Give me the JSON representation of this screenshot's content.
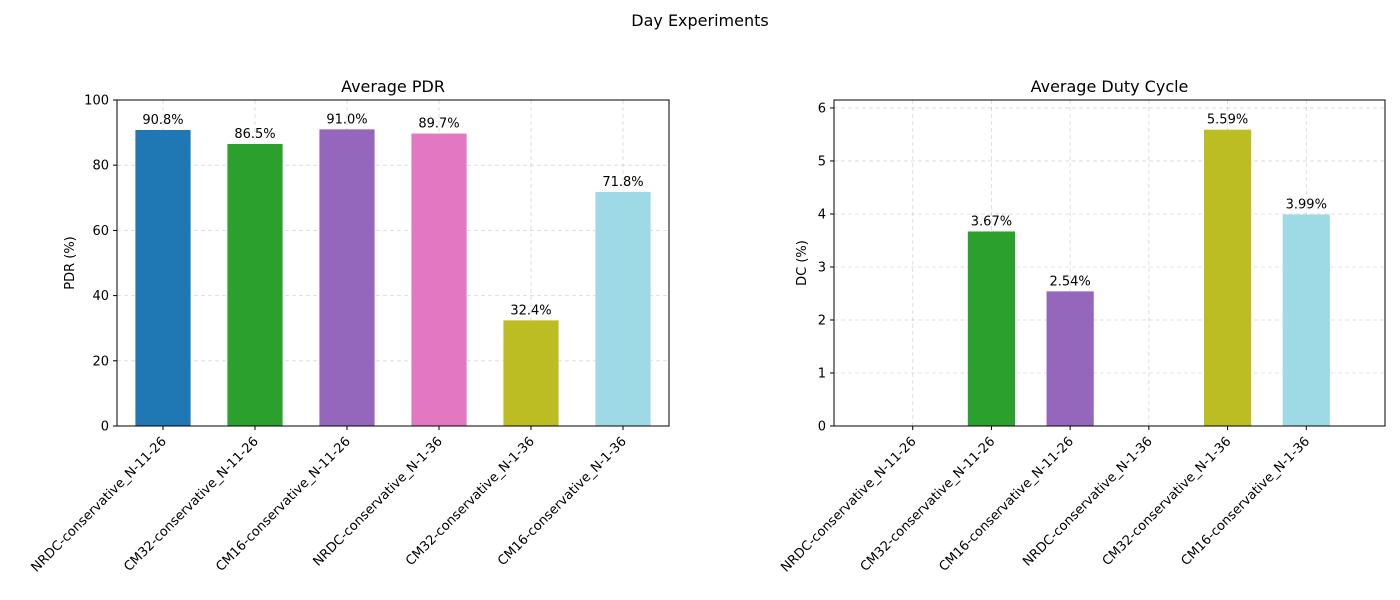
{
  "figure_title": "Day Experiments",
  "chart_data": [
    {
      "type": "bar",
      "title": "Average PDR",
      "xlabel": "",
      "ylabel": "PDR (%)",
      "ylim": [
        0,
        100
      ],
      "yticks": [
        0,
        20,
        40,
        60,
        80,
        100
      ],
      "grid": true,
      "categories": [
        "NRDC-conservative_N-11-26",
        "CM32-conservative_N-11-26",
        "CM16-conservative_N-11-26",
        "NRDC-conservative_N-1-36",
        "CM32-conservative_N-1-36",
        "CM16-conservative_N-1-36"
      ],
      "values": [
        90.8,
        86.5,
        91.0,
        89.7,
        32.4,
        71.8
      ],
      "labels": [
        "90.8%",
        "86.5%",
        "91.0%",
        "89.7%",
        "32.4%",
        "71.8%"
      ],
      "colors": [
        "#1f77b4",
        "#2ca02c",
        "#9467bd",
        "#e377c2",
        "#bcbd22",
        "#9edae5"
      ]
    },
    {
      "type": "bar",
      "title": "Average Duty Cycle",
      "xlabel": "",
      "ylabel": "DC (%)",
      "ylim": [
        0,
        6.15
      ],
      "yticks": [
        0,
        1,
        2,
        3,
        4,
        5,
        6
      ],
      "grid": true,
      "categories": [
        "NRDC-conservative_N-11-26",
        "CM32-conservative_N-11-26",
        "CM16-conservative_N-11-26",
        "NRDC-conservative_N-1-36",
        "CM32-conservative_N-1-36",
        "CM16-conservative_N-1-36"
      ],
      "values": [
        0,
        3.67,
        2.54,
        0,
        5.59,
        3.99
      ],
      "labels": [
        "",
        "3.67%",
        "2.54%",
        "",
        "5.59%",
        "3.99%"
      ],
      "colors": [
        "#1f77b4",
        "#2ca02c",
        "#9467bd",
        "#e377c2",
        "#bcbd22",
        "#9edae5"
      ]
    }
  ]
}
